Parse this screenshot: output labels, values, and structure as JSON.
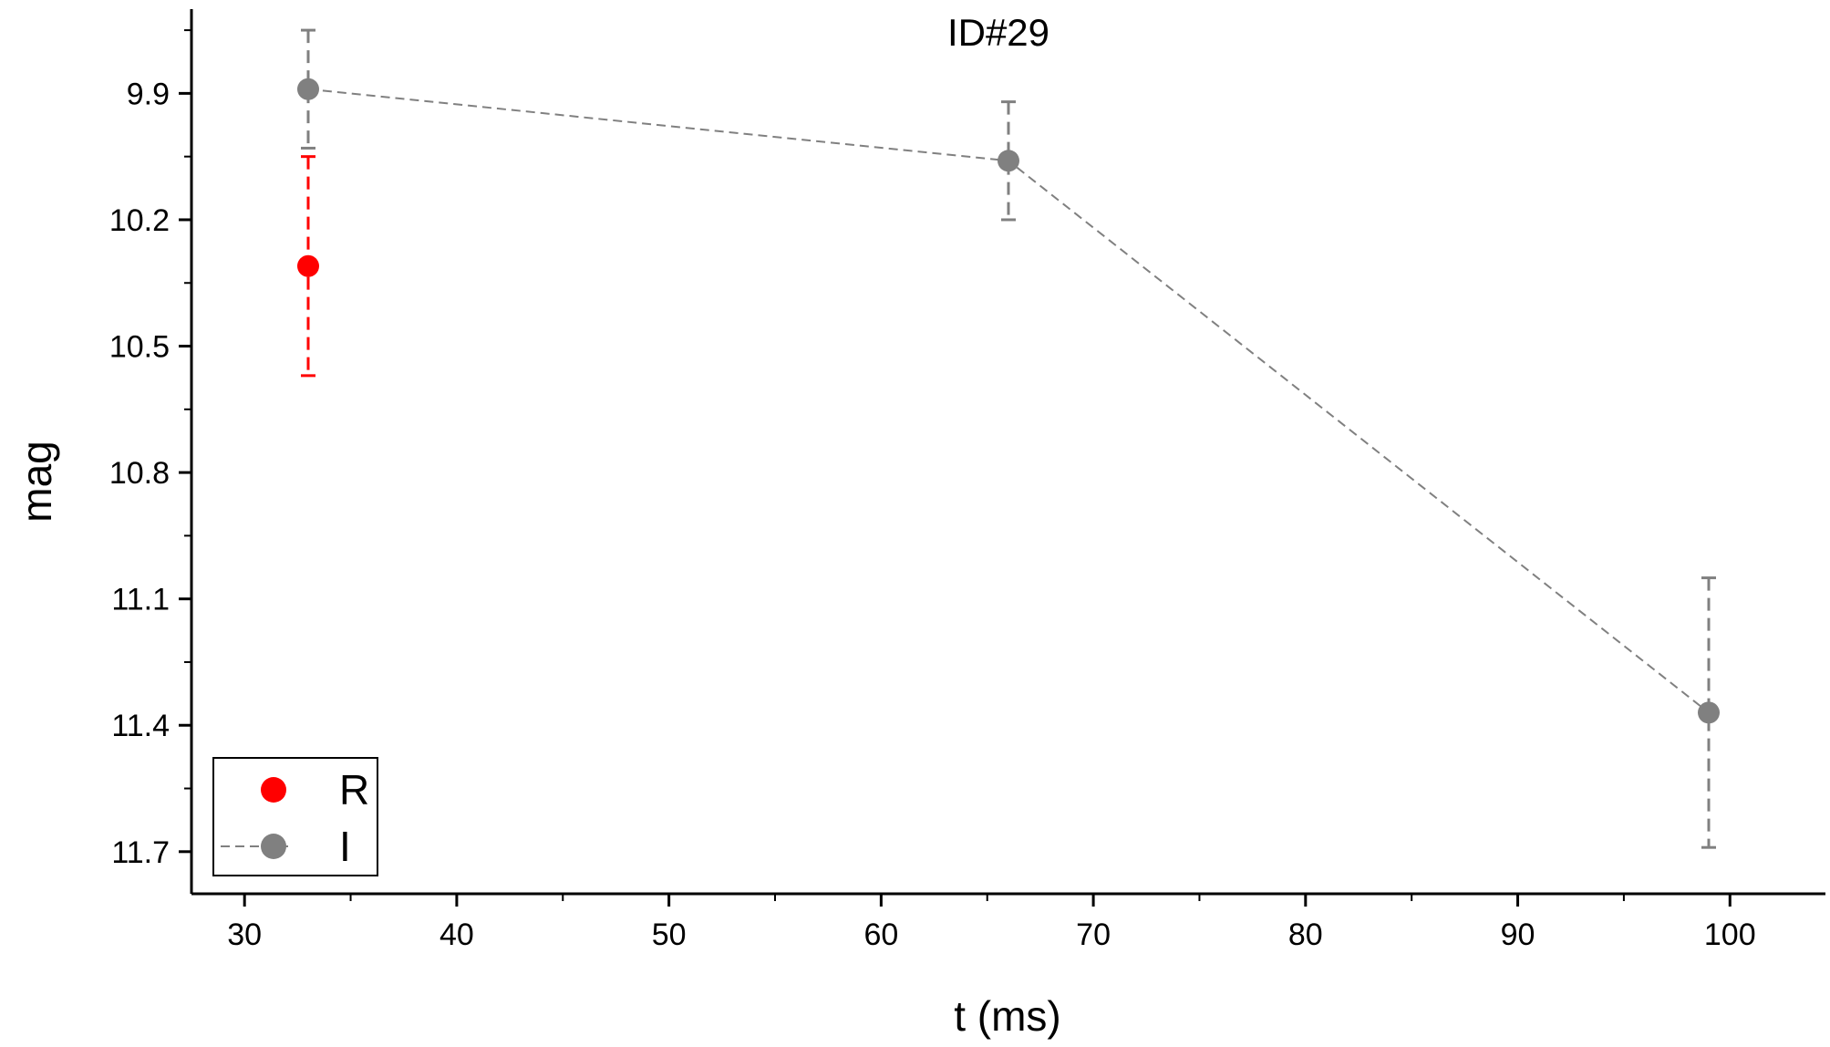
{
  "chart_data": {
    "type": "scatter",
    "title": "ID#29",
    "xlabel": "t (ms)",
    "ylabel": "mag",
    "xlim": [
      27.5,
      104.5
    ],
    "ylim": [
      11.8,
      9.7
    ],
    "y_inverted": true,
    "x_ticks": [
      "30",
      "40",
      "50",
      "60",
      "70",
      "80",
      "90",
      "100"
    ],
    "y_ticks": [
      "9.9",
      "10.2",
      "10.5",
      "10.8",
      "11.1",
      "11.4",
      "11.7"
    ],
    "grid": false,
    "legend_position": "bottom-left",
    "series": [
      {
        "name": "R",
        "color": "#ff0000",
        "connected": false,
        "points": [
          {
            "x": 33,
            "y": 10.31,
            "err": 0.26
          }
        ]
      },
      {
        "name": "I",
        "color": "#808080",
        "connected": true,
        "line_style": "dashed",
        "points": [
          {
            "x": 33,
            "y": 9.89,
            "err": 0.14
          },
          {
            "x": 66,
            "y": 10.06,
            "err": 0.14
          },
          {
            "x": 99,
            "y": 11.37,
            "err": 0.32
          }
        ]
      }
    ]
  }
}
